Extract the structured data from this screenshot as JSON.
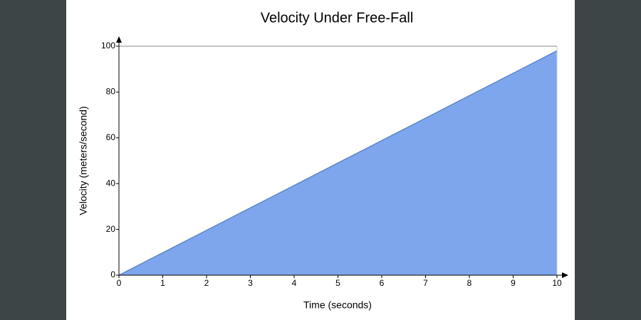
{
  "chart_data": {
    "type": "area",
    "title": "Velocity Under Free-Fall",
    "x_label": "Time (seconds)",
    "y_label": "Velocity (meters/second)",
    "x": [
      0,
      1,
      2,
      3,
      4,
      5,
      6,
      7,
      8,
      9,
      10
    ],
    "values": [
      0,
      9.8,
      19.6,
      29.4,
      39.2,
      49,
      58.8,
      68.6,
      78.4,
      88.2,
      98
    ],
    "color": "#7ea6ec",
    "line_color": "#5b87d8",
    "xlim": [
      0,
      10
    ],
    "ylim": [
      0,
      100
    ],
    "xticks": [
      0,
      1,
      2,
      3,
      4,
      5,
      6,
      7,
      8,
      9,
      10
    ],
    "yticks": [
      0,
      20,
      40,
      60,
      80,
      100
    ]
  }
}
